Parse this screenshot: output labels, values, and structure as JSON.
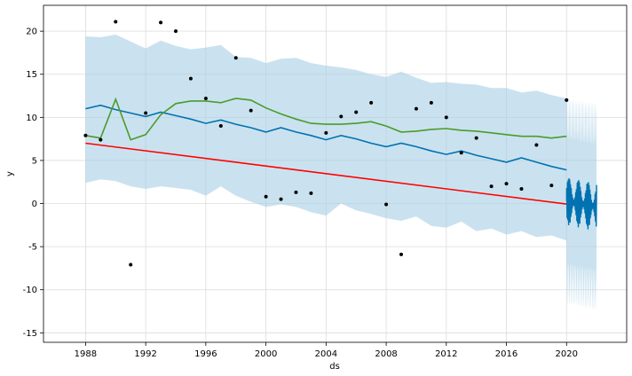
{
  "chart_data": {
    "type": "line",
    "xlabel": "ds",
    "ylabel": "y",
    "xlim": [
      1985.2,
      2024.0
    ],
    "ylim": [
      -16.1,
      23.0
    ],
    "x_ticks": [
      1988,
      1992,
      1996,
      2000,
      2004,
      2008,
      2012,
      2016,
      2020
    ],
    "y_ticks": [
      -15,
      -10,
      -5,
      0,
      5,
      10,
      15,
      20
    ],
    "grid": true,
    "legend": "none",
    "colors": {
      "interval": "#a6cfe5",
      "forecast": "#0072b2",
      "observed": "#000000",
      "trend": "#ff0000",
      "smoothed": "#4b9b2b",
      "grid": "#dcdcdc"
    },
    "series": [
      {
        "kind": "interval",
        "x": [
          1988,
          1989,
          1990,
          1991,
          1992,
          1993,
          1994,
          1995,
          1996,
          1997,
          1998,
          1999,
          2000,
          2001,
          2002,
          2003,
          2004,
          2005,
          2006,
          2007,
          2008,
          2009,
          2010,
          2011,
          2012,
          2013,
          2014,
          2015,
          2016,
          2017,
          2018,
          2019,
          2020
        ],
        "upper": [
          19.4,
          19.3,
          19.6,
          18.8,
          18.0,
          18.9,
          18.3,
          17.9,
          18.1,
          18.4,
          17.0,
          16.9,
          16.3,
          16.8,
          16.9,
          16.3,
          16.0,
          15.8,
          15.5,
          15.0,
          14.7,
          15.3,
          14.6,
          14.0,
          14.1,
          13.9,
          13.8,
          13.4,
          13.4,
          12.9,
          13.1,
          12.6,
          12.2
        ],
        "lower": [
          2.4,
          2.8,
          2.6,
          2.0,
          1.7,
          2.0,
          1.8,
          1.6,
          0.9,
          2.0,
          0.9,
          0.2,
          -0.4,
          -0.1,
          -0.4,
          -1.0,
          -1.4,
          0.0,
          -0.8,
          -1.2,
          -1.7,
          -2.0,
          -1.5,
          -2.6,
          -2.8,
          -2.1,
          -3.2,
          -2.9,
          -3.6,
          -3.2,
          -3.9,
          -3.7,
          -4.3
        ]
      },
      {
        "kind": "line",
        "role": "forecast",
        "x": [
          1988,
          1989,
          1990,
          1991,
          1992,
          1993,
          1994,
          1995,
          1996,
          1997,
          1998,
          1999,
          2000,
          2001,
          2002,
          2003,
          2004,
          2005,
          2006,
          2007,
          2008,
          2009,
          2010,
          2011,
          2012,
          2013,
          2014,
          2015,
          2016,
          2017,
          2018,
          2019,
          2020
        ],
        "y": [
          11.0,
          11.4,
          10.9,
          10.5,
          10.1,
          10.6,
          10.2,
          9.8,
          9.3,
          9.7,
          9.2,
          8.8,
          8.3,
          8.8,
          8.3,
          7.9,
          7.4,
          7.9,
          7.5,
          7.0,
          6.6,
          7.0,
          6.6,
          6.1,
          5.7,
          6.1,
          5.6,
          5.2,
          4.8,
          5.3,
          4.8,
          4.3,
          3.9
        ]
      },
      {
        "kind": "line",
        "role": "smoothed",
        "x": [
          1988,
          1989,
          1990,
          1991,
          1992,
          1993,
          1994,
          1995,
          1996,
          1997,
          1998,
          1999,
          2000,
          2001,
          2002,
          2003,
          2004,
          2005,
          2006,
          2007,
          2008,
          2009,
          2010,
          2011,
          2012,
          2013,
          2014,
          2015,
          2016,
          2017,
          2018,
          2019,
          2020
        ],
        "y": [
          7.9,
          7.6,
          12.1,
          7.4,
          8.0,
          10.3,
          11.6,
          11.9,
          11.9,
          11.7,
          12.2,
          12.0,
          11.1,
          10.4,
          9.8,
          9.3,
          9.2,
          9.2,
          9.3,
          9.5,
          9.0,
          8.3,
          8.4,
          8.6,
          8.7,
          8.5,
          8.4,
          8.2,
          8.0,
          7.8,
          7.8,
          7.6,
          7.8
        ]
      },
      {
        "kind": "line",
        "role": "trend",
        "x": [
          1988,
          2022
        ],
        "y": [
          7.0,
          -0.5
        ]
      },
      {
        "kind": "scatter",
        "role": "observed",
        "x": [
          1988,
          1989,
          1990,
          1991,
          1992,
          1993,
          1994,
          1995,
          1996,
          1997,
          1998,
          1999,
          2000,
          2001,
          2002,
          2003,
          2004,
          2005,
          2006,
          2007,
          2008,
          2009,
          2010,
          2011,
          2012,
          2013,
          2014,
          2015,
          2016,
          2017,
          2018,
          2019,
          2020
        ],
        "y": [
          7.9,
          7.4,
          21.1,
          -7.1,
          10.5,
          21.0,
          20.0,
          14.5,
          12.2,
          9.0,
          16.9,
          10.8,
          0.8,
          0.5,
          1.3,
          1.2,
          8.2,
          10.1,
          10.6,
          11.7,
          -0.1,
          -5.9,
          11.0,
          11.7,
          10.0,
          5.9,
          7.6,
          2.0,
          2.3,
          1.7,
          6.8,
          2.1,
          12.0
        ]
      },
      {
        "kind": "oscillation",
        "role": "forecast-extension",
        "x_range": [
          2020.0,
          2022.0
        ],
        "center": [
          0.3,
          -0.4
        ],
        "amplitude": 2.8,
        "band": 12.0
      }
    ]
  }
}
